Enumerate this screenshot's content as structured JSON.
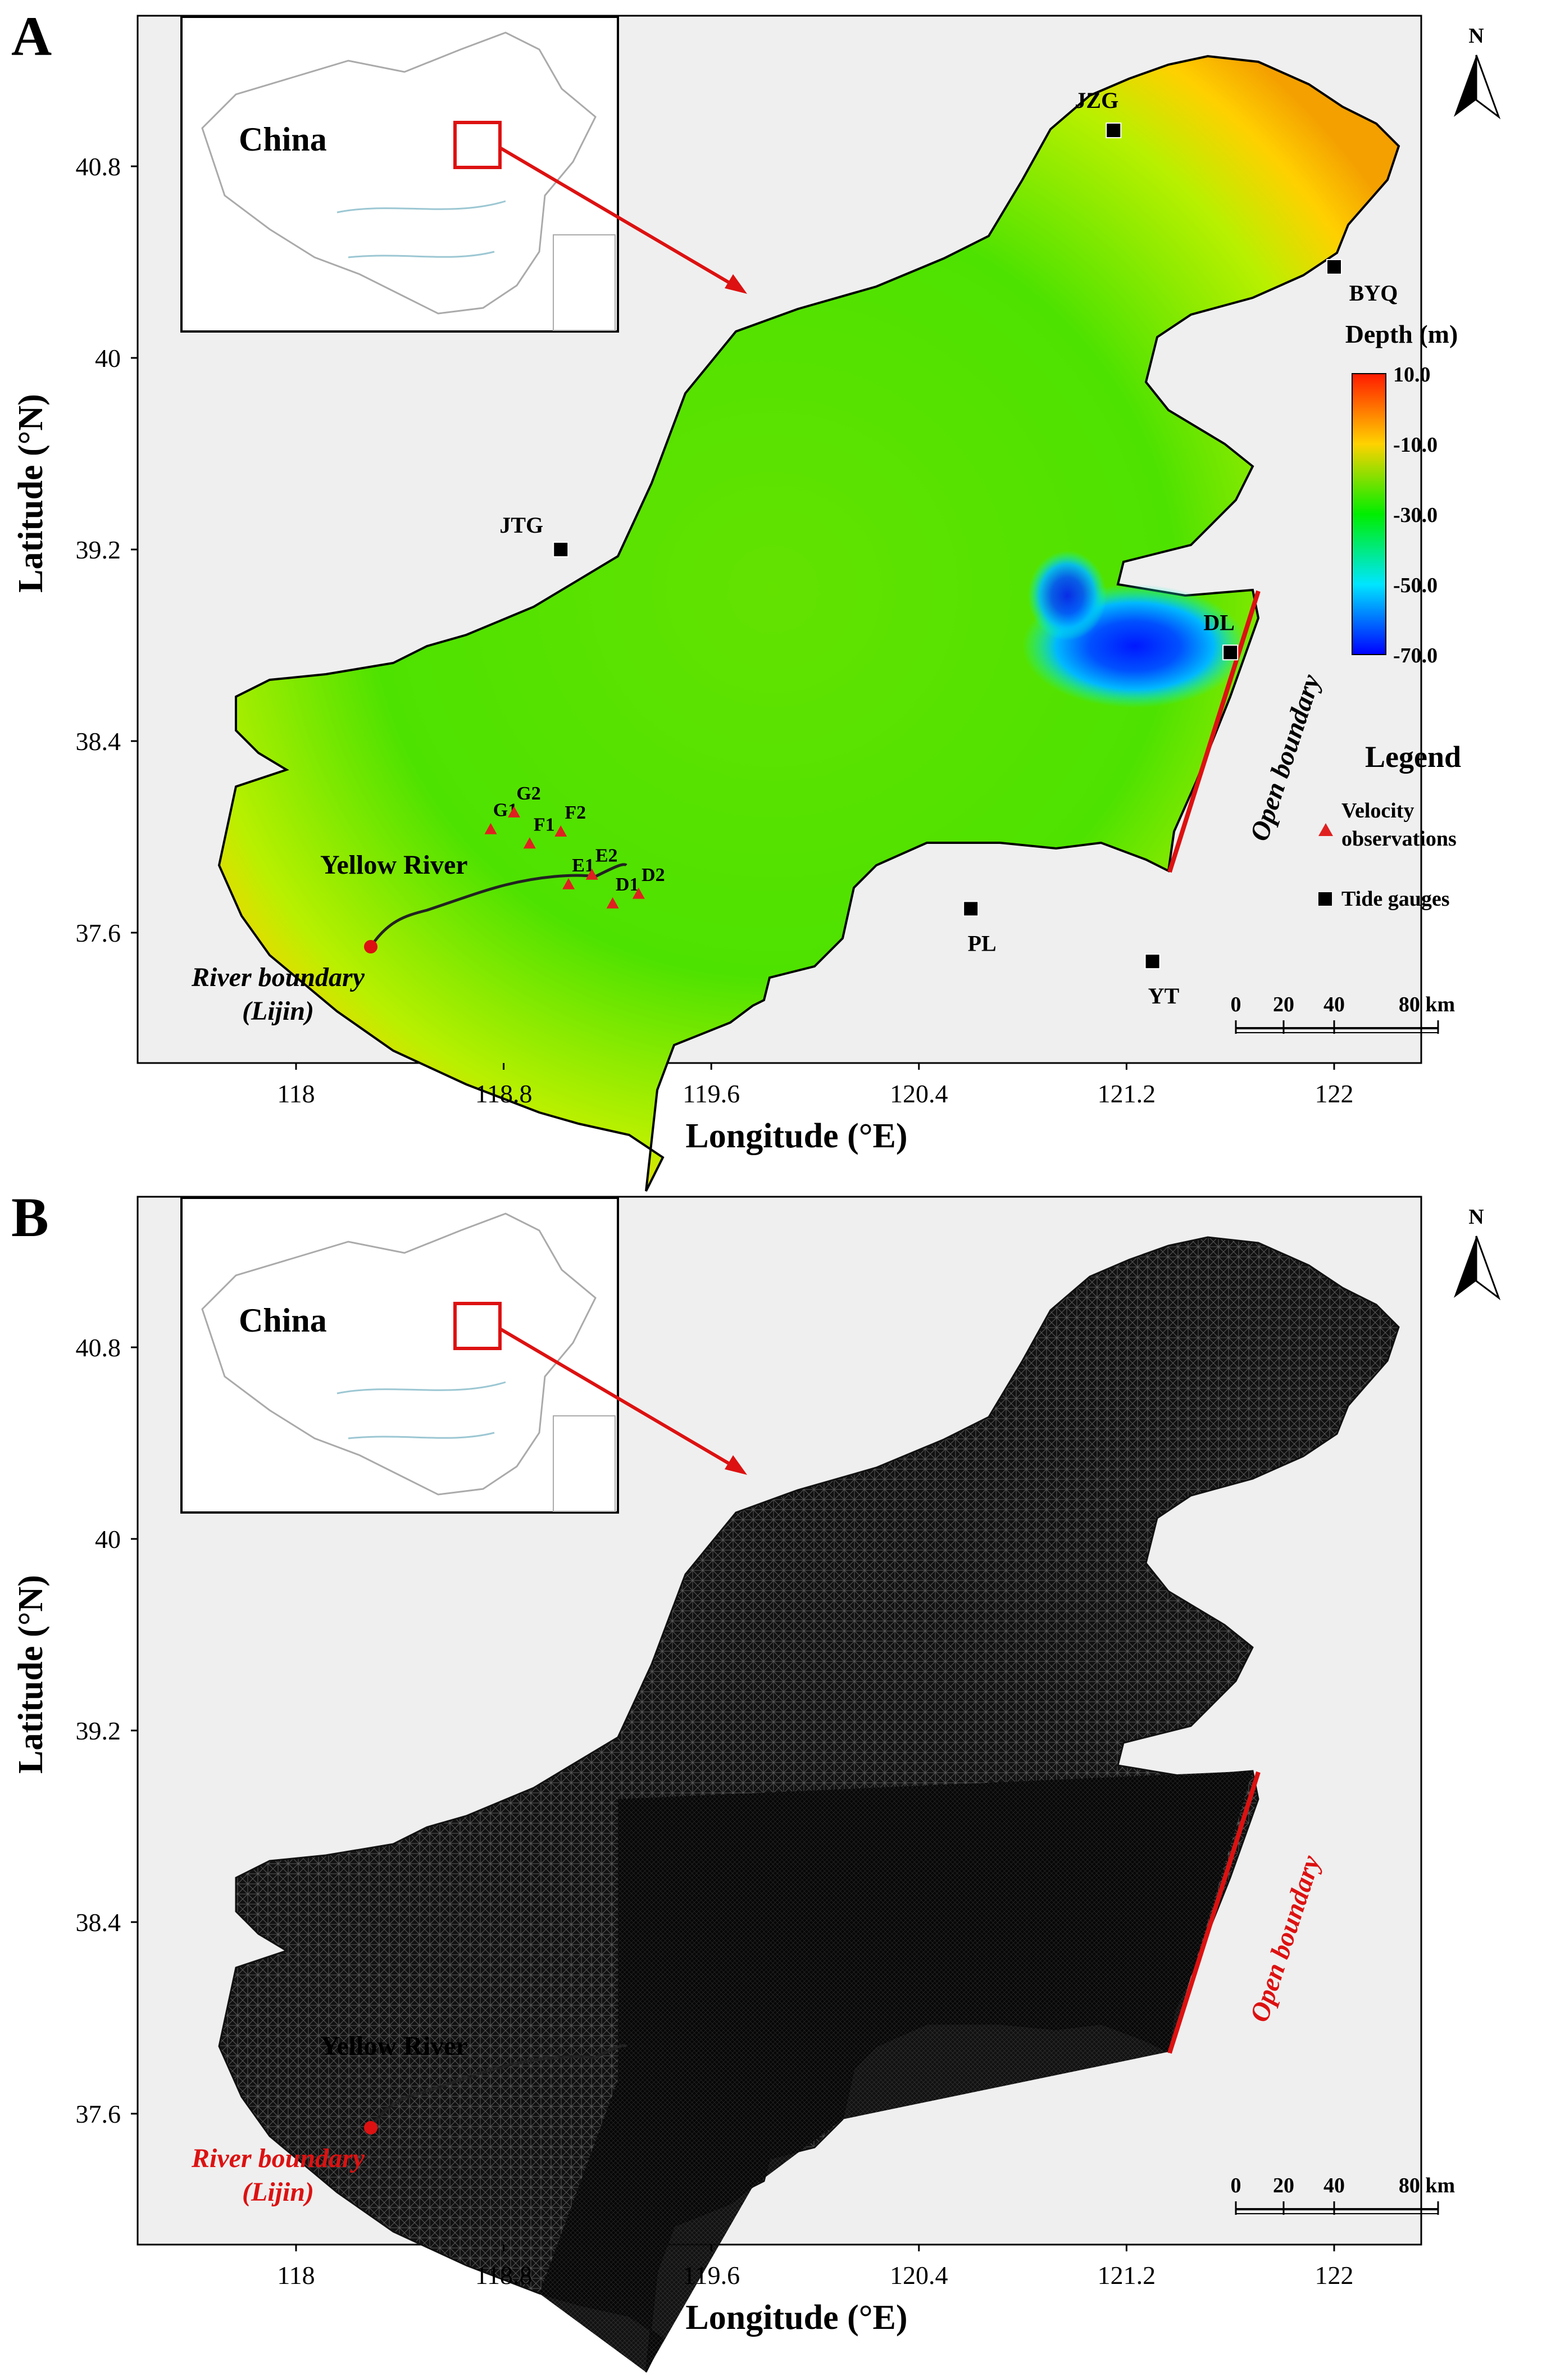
{
  "panels": [
    {
      "label": "A",
      "type": "bathymetry",
      "inset": {
        "label": "China"
      },
      "stations": [
        {
          "name": "JZG",
          "lon": 121.15,
          "lat": 40.95
        },
        {
          "name": "BYQ",
          "lon": 122.0,
          "lat": 40.38
        },
        {
          "name": "JTG",
          "lon": 119.02,
          "lat": 39.2
        },
        {
          "name": "DL",
          "lon": 121.6,
          "lat": 38.77
        },
        {
          "name": "PL",
          "lon": 120.6,
          "lat": 37.7
        },
        {
          "name": "YT",
          "lon": 121.3,
          "lat": 37.48
        }
      ],
      "velocity_points": [
        {
          "name": "G1",
          "lon": 118.75,
          "lat": 38.03
        },
        {
          "name": "G2",
          "lon": 118.84,
          "lat": 38.1
        },
        {
          "name": "F1",
          "lon": 118.9,
          "lat": 37.97
        },
        {
          "name": "F2",
          "lon": 119.02,
          "lat": 38.02
        },
        {
          "name": "E1",
          "lon": 119.05,
          "lat": 37.8
        },
        {
          "name": "E2",
          "lon": 119.14,
          "lat": 37.84
        },
        {
          "name": "D1",
          "lon": 119.22,
          "lat": 37.72
        },
        {
          "name": "D2",
          "lon": 119.32,
          "lat": 37.76
        }
      ],
      "colorbar": {
        "title": "Depth (m)",
        "ticks": [
          "10.0",
          "-10.0",
          "-30.0",
          "-50.0",
          "-70.0"
        ],
        "colors": [
          "#ff1a00",
          "#ffd200",
          "#00ee00",
          "#00e6ff",
          "#0000ff"
        ]
      },
      "legend": {
        "title": "Legend",
        "items": [
          {
            "label": "Velocity\nobservations",
            "symbol": "triangle",
            "color": "#e02020"
          },
          {
            "label": "Tide gauges",
            "symbol": "square",
            "color": "#000000"
          }
        ]
      },
      "open_boundary_label": "Open boundary",
      "yellow_river_label": "Yellow River",
      "river_boundary_label": [
        "River boundary",
        "(Lijin)"
      ],
      "scalebar": {
        "ticks": [
          "0",
          "20",
          "40",
          "80 km"
        ]
      },
      "north_label": "N"
    },
    {
      "label": "B",
      "type": "mesh",
      "inset": {
        "label": "China"
      },
      "open_boundary_label": "Open boundary",
      "yellow_river_label": "Yellow River",
      "river_boundary_label": [
        "River boundary",
        "(Lijin)"
      ],
      "scalebar": {
        "ticks": [
          "0",
          "20",
          "40",
          "80 km"
        ]
      },
      "north_label": "N"
    }
  ],
  "axes": {
    "x_label": "Longitude (°E)",
    "y_label": "Latitude (°N)",
    "x_ticks": [
      "118",
      "118.8",
      "119.6",
      "120.4",
      "121.2",
      "122"
    ],
    "y_ticks": [
      "40.8",
      "40",
      "39.2",
      "38.4",
      "37.6"
    ]
  },
  "colors": {
    "frame_bg": "#efefef",
    "land_gray": "#efefef",
    "accent_red": "#dd1111",
    "mesh_dark": "#0a0a0a"
  }
}
